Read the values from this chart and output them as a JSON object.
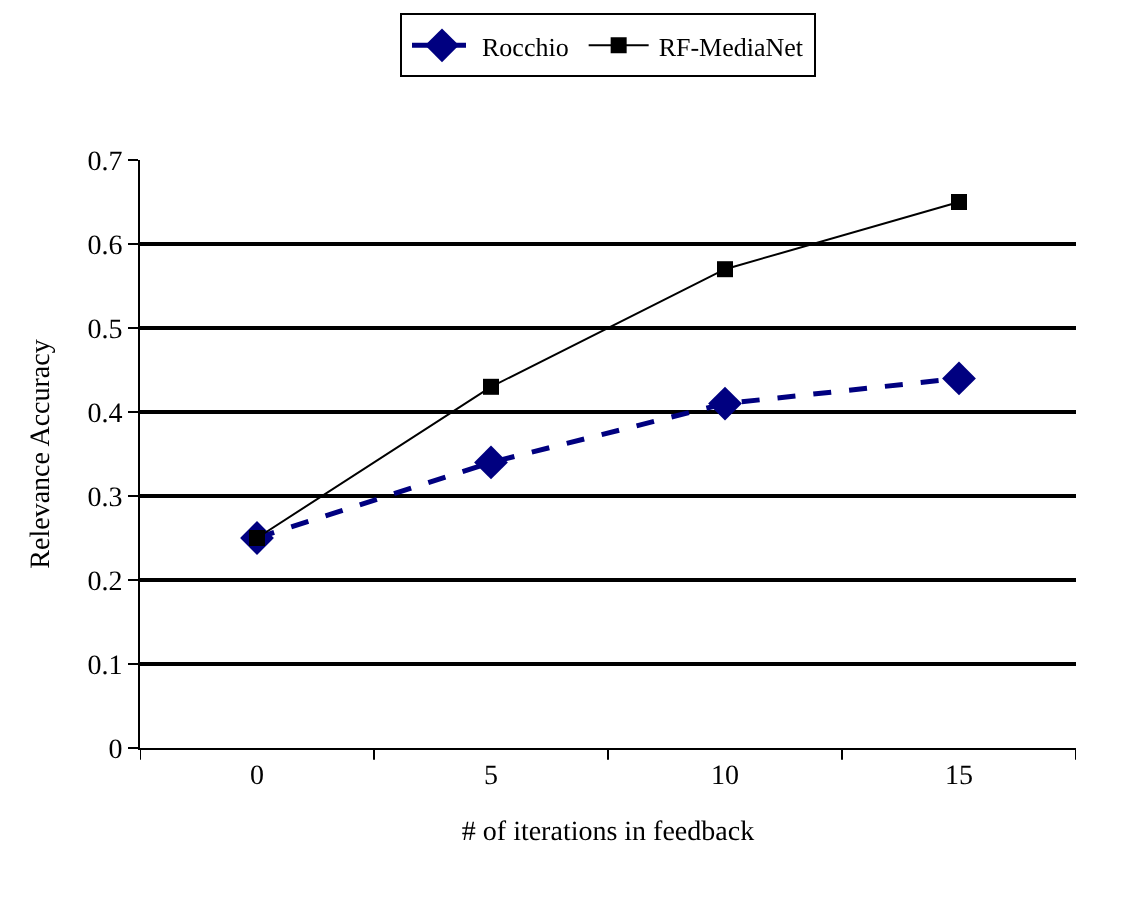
{
  "chart_data": {
    "type": "line",
    "xlabel": "# of iterations in feedback",
    "ylabel": "Relevance Accuracy",
    "categories": [
      "0",
      "5",
      "10",
      "15"
    ],
    "series": [
      {
        "name": "Rocchio",
        "color": "#000080",
        "values": [
          0.25,
          0.34,
          0.41,
          0.44
        ],
        "marker": "diamond",
        "line_style": "dashed"
      },
      {
        "name": "RF-MediaNet",
        "color": "#000000",
        "values": [
          0.25,
          0.43,
          0.57,
          0.65
        ],
        "marker": "square",
        "line_style": "solid"
      }
    ],
    "ylim": [
      0,
      0.7
    ],
    "yticks": [
      0,
      0.1,
      0.2,
      0.3,
      0.4,
      0.5,
      0.6,
      0.7
    ],
    "grid": "y",
    "legend": "top"
  }
}
